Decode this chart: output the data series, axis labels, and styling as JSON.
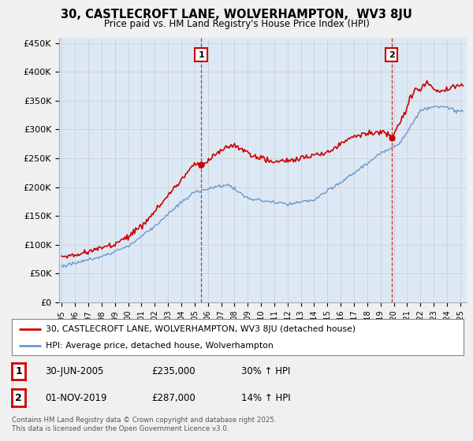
{
  "title": "30, CASTLECROFT LANE, WOLVERHAMPTON,  WV3 8JU",
  "subtitle": "Price paid vs. HM Land Registry's House Price Index (HPI)",
  "legend_line1": "30, CASTLECROFT LANE, WOLVERHAMPTON, WV3 8JU (detached house)",
  "legend_line2": "HPI: Average price, detached house, Wolverhampton",
  "property_color": "#cc0000",
  "hpi_color": "#6699cc",
  "hpi_fill_color": "#dde8f5",
  "background_color": "#f0f0f0",
  "plot_bg": "#ffffff",
  "ylim": [
    0,
    460000
  ],
  "yticks": [
    0,
    50000,
    100000,
    150000,
    200000,
    250000,
    300000,
    350000,
    400000,
    450000
  ],
  "ytick_labels": [
    "£0",
    "£50K",
    "£100K",
    "£150K",
    "£200K",
    "£250K",
    "£300K",
    "£350K",
    "£400K",
    "£450K"
  ],
  "sale1_label": "30-JUN-2005",
  "sale1_price_label": "£235,000",
  "sale1_hpi": "30% ↑ HPI",
  "sale2_label": "01-NOV-2019",
  "sale2_price_label": "£287,000",
  "sale2_hpi": "14% ↑ HPI",
  "footer": "Contains HM Land Registry data © Crown copyright and database right 2025.\nThis data is licensed under the Open Government Licence v3.0.",
  "sale1_x": 2005.5,
  "sale2_x": 2019.83,
  "xlim_left": 1994.8,
  "xlim_right": 2025.5
}
